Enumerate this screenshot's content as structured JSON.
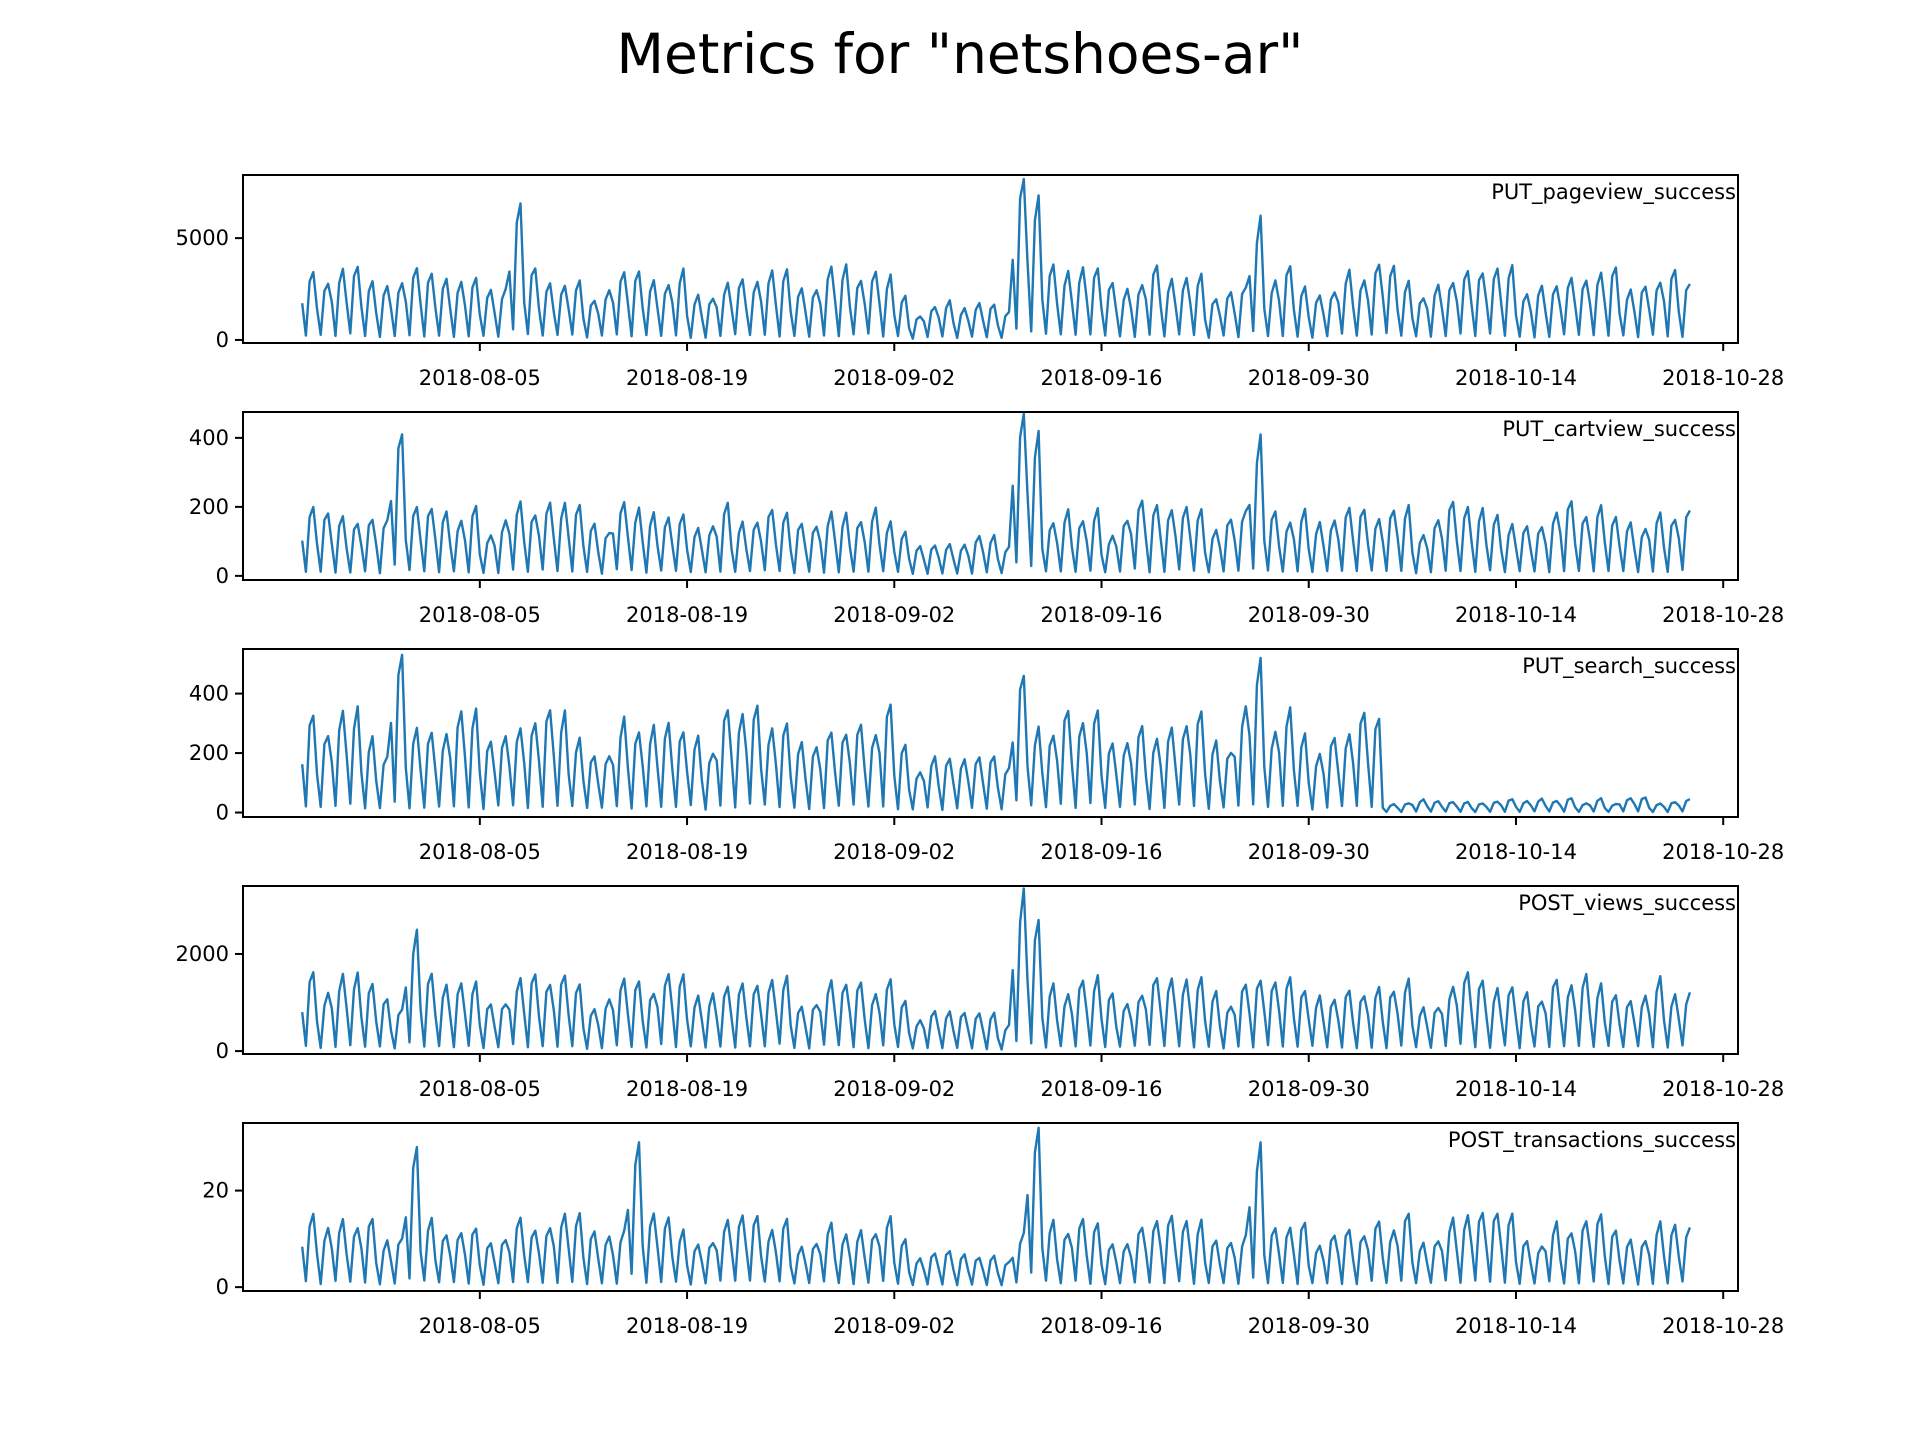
{
  "figure": {
    "title": "Metrics for \"netshoes-ar\""
  },
  "chart_data": {
    "type": "line",
    "x_range": [
      "2018-07-24",
      "2018-10-25"
    ],
    "x_ticks": [
      "2018-08-05",
      "2018-08-19",
      "2018-09-02",
      "2018-09-16",
      "2018-09-30",
      "2018-10-14",
      "2018-10-28"
    ],
    "series_color": "#1f77b4",
    "grid": false,
    "legend": "none",
    "panels": [
      {
        "label": "PUT_pageview_success",
        "ylim": [
          -150,
          8100
        ],
        "yticks": [
          0,
          5000
        ],
        "typical_peak": 3400,
        "spikes": [
          [
            "2018-08-07",
            6700
          ],
          [
            "2018-09-10",
            7900
          ],
          [
            "2018-09-11",
            7100
          ],
          [
            "2018-09-26",
            6100
          ]
        ]
      },
      {
        "label": "PUT_cartview_success",
        "ylim": [
          -12,
          475
        ],
        "yticks": [
          0,
          200,
          400
        ],
        "typical_peak": 200,
        "spikes": [
          [
            "2018-07-30",
            410
          ],
          [
            "2018-09-10",
            470
          ],
          [
            "2018-09-11",
            420
          ],
          [
            "2018-09-26",
            410
          ]
        ]
      },
      {
        "label": "PUT_search_success",
        "ylim": [
          -15,
          550
        ],
        "yticks": [
          0,
          200,
          400
        ],
        "typical_peak": 330,
        "spikes": [
          [
            "2018-07-30",
            530
          ],
          [
            "2018-09-10",
            460
          ],
          [
            "2018-09-26",
            520
          ]
        ],
        "drop_after": "2018-10-04",
        "level_after_drop": 40
      },
      {
        "label": "POST_views_success",
        "ylim": [
          -60,
          3400
        ],
        "yticks": [
          0,
          2000
        ],
        "typical_peak": 1500,
        "spikes": [
          [
            "2018-07-31",
            2500
          ],
          [
            "2018-09-10",
            3350
          ],
          [
            "2018-09-11",
            2700
          ]
        ]
      },
      {
        "label": "POST_transactions_success",
        "ylim": [
          -0.8,
          34
        ],
        "yticks": [
          0,
          20
        ],
        "typical_peak": 14,
        "spikes": [
          [
            "2018-07-31",
            29
          ],
          [
            "2018-08-15",
            30
          ],
          [
            "2018-09-11",
            33
          ],
          [
            "2018-09-26",
            30
          ]
        ]
      }
    ]
  }
}
